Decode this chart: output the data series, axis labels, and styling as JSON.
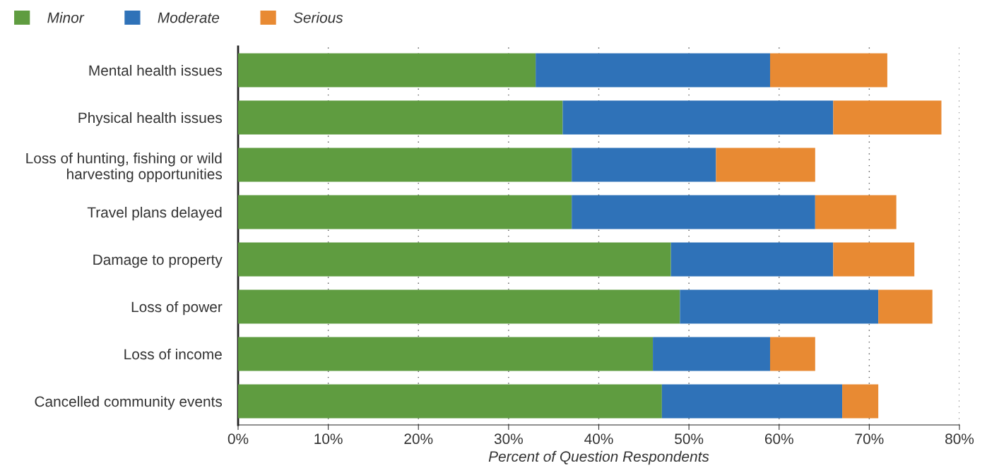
{
  "chart_data": {
    "type": "bar",
    "orientation": "horizontal",
    "stacked": true,
    "categories": [
      "Mental health issues",
      "Physical health issues",
      "Loss of hunting, fishing or wild\nharvesting opportunities",
      "Travel plans delayed",
      "Damage to property",
      "Loss of power",
      "Loss of income",
      "Cancelled community events"
    ],
    "series": [
      {
        "name": "Minor",
        "color": "#5f9c40",
        "values": [
          33,
          36,
          37,
          37,
          48,
          49,
          46,
          47
        ]
      },
      {
        "name": "Moderate",
        "color": "#2f72b8",
        "values": [
          26,
          30,
          16,
          27,
          18,
          22,
          13,
          20
        ]
      },
      {
        "name": "Serious",
        "color": "#e88a33",
        "values": [
          13,
          12,
          11,
          9,
          9,
          6,
          5,
          4
        ]
      }
    ],
    "xlabel": "Percent of Question Respondents",
    "xlim": [
      0,
      80
    ],
    "xticks": [
      {
        "value": 0,
        "label": "0%"
      },
      {
        "value": 10,
        "label": "10%"
      },
      {
        "value": 20,
        "label": "20%"
      },
      {
        "value": 30,
        "label": "30%"
      },
      {
        "value": 40,
        "label": "40%"
      },
      {
        "value": 50,
        "label": "50%"
      },
      {
        "value": 60,
        "label": "60%"
      },
      {
        "value": 70,
        "label": "70%"
      },
      {
        "value": 80,
        "label": "80%"
      }
    ],
    "grid": "x",
    "legend": "top left"
  }
}
